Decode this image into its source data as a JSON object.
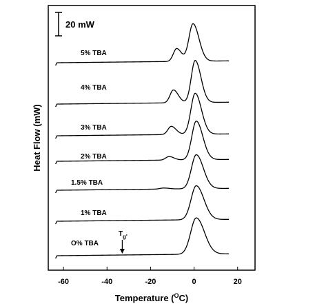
{
  "chart_data": {
    "type": "line",
    "title": "",
    "xlabel_prefix": "Temperature (",
    "xlabel_sup": "O",
    "xlabel_suffix": "C)",
    "ylabel": "Heat Flow (mW)",
    "xlim": [
      -67,
      28
    ],
    "x_ticks": [
      -60,
      -40,
      -20,
      0,
      20
    ],
    "x_tick_labels": [
      "-60",
      "-40",
      "-20",
      "0",
      "20"
    ],
    "grid": false,
    "legend": "none",
    "scale_bar_label": "20 mW",
    "tg_annotation_main": "T",
    "tg_annotation_sub": "g'",
    "tg_annotation_x": -33,
    "series": [
      {
        "name": "O% TBA",
        "baseline_start_mw": -0.6,
        "baseline_end_mw": 1.0,
        "peaks": [
          {
            "x": 1.0,
            "height_mw": 31,
            "width": 3.0
          }
        ]
      },
      {
        "name": "1% TBA",
        "baseline_start_mw": -0.6,
        "baseline_end_mw": 1.0,
        "peaks": [
          {
            "x": 1.0,
            "height_mw": 29,
            "width": 2.8
          }
        ]
      },
      {
        "name": "1.5% TBA",
        "baseline_start_mw": -0.6,
        "baseline_end_mw": 1.0,
        "peaks": [
          {
            "x": -14,
            "height_mw": 0.9,
            "width": 2.0
          },
          {
            "x": 1.0,
            "height_mw": 29,
            "width": 2.6
          }
        ]
      },
      {
        "name": "2% TBA",
        "baseline_start_mw": -0.6,
        "baseline_end_mw": 1.0,
        "peaks": [
          {
            "x": -11.5,
            "height_mw": 3.0,
            "width": 1.8
          },
          {
            "x": 1.0,
            "height_mw": 33,
            "width": 2.4
          }
        ]
      },
      {
        "name": "3% TBA",
        "baseline_start_mw": -0.6,
        "baseline_end_mw": 1.0,
        "peaks": [
          {
            "x": -10.5,
            "height_mw": 7.0,
            "width": 1.8
          },
          {
            "x": 0.5,
            "height_mw": 35,
            "width": 2.3
          }
        ]
      },
      {
        "name": "4% TBA",
        "baseline_start_mw": -0.6,
        "baseline_end_mw": 1.0,
        "peaks": [
          {
            "x": -9.5,
            "height_mw": 11,
            "width": 1.8
          },
          {
            "x": 0.5,
            "height_mw": 36,
            "width": 2.1
          }
        ]
      },
      {
        "name": "5% TBA",
        "baseline_start_mw": -0.6,
        "baseline_end_mw": 1.0,
        "peaks": [
          {
            "x": -8,
            "height_mw": 11,
            "width": 1.8
          },
          {
            "x": -0.5,
            "height_mw": 32,
            "width": 2.2
          }
        ]
      }
    ]
  }
}
